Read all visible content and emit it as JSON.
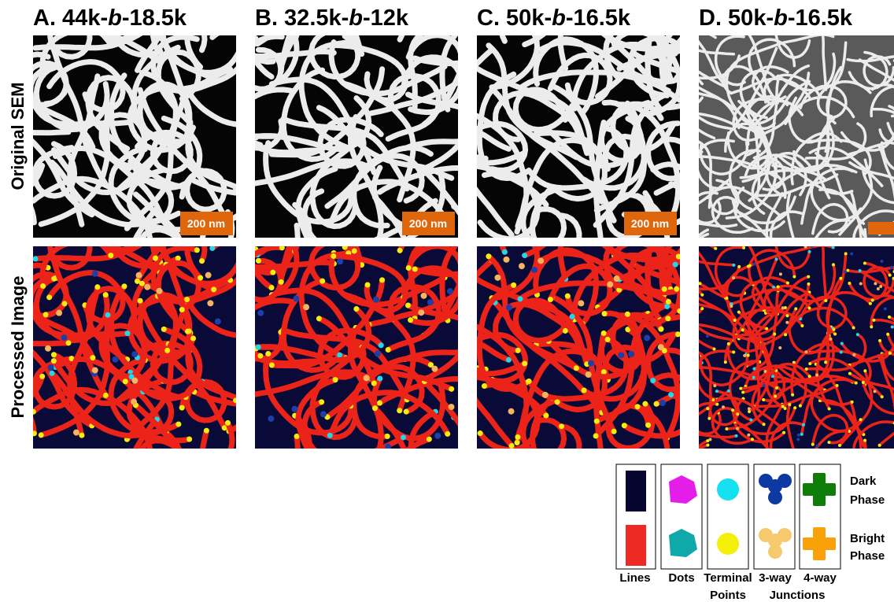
{
  "panels": [
    {
      "prefix": "A. 44k-",
      "italic": "b",
      "suffix": "-18.5k",
      "scale_bar": "200 nm"
    },
    {
      "prefix": "B. 32.5k-",
      "italic": "b",
      "suffix": "-12k",
      "scale_bar": "200 nm"
    },
    {
      "prefix": "C. 50k-",
      "italic": "b",
      "suffix": "-16.5k",
      "scale_bar": "200 nm"
    },
    {
      "prefix": "D. 50k-",
      "italic": "b",
      "suffix": "-16.5k"
    }
  ],
  "row_labels": [
    "Original SEM",
    "Processed Image"
  ],
  "legend": {
    "columns": [
      {
        "label": "Lines"
      },
      {
        "label": "Dots"
      },
      {
        "label": "Terminal",
        "sublabel": "Points"
      },
      {
        "label": "3-way"
      },
      {
        "label": "4-way"
      }
    ],
    "group_label": "Junctions",
    "rows": [
      {
        "line1": "Dark",
        "line2": "Phase"
      },
      {
        "line1": "Bright",
        "line2": "Phase"
      }
    ]
  }
}
